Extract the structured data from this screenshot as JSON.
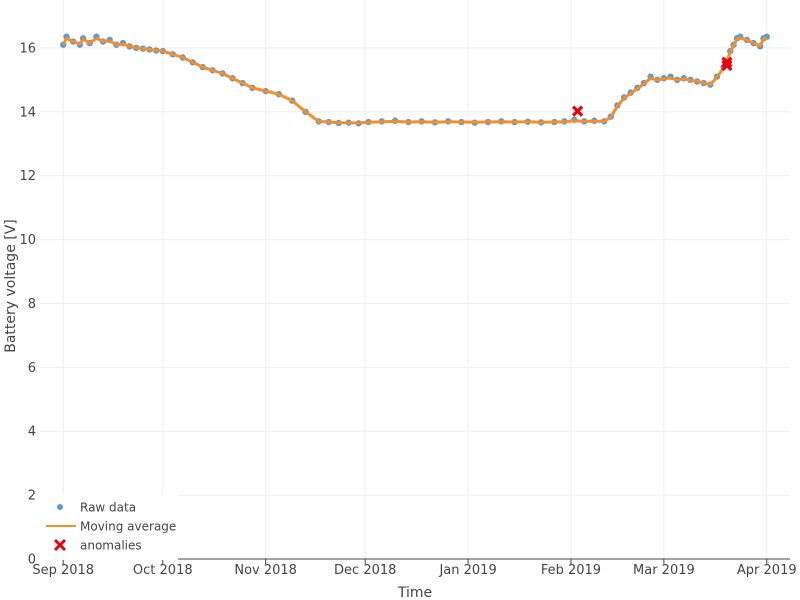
{
  "chart_data": {
    "type": "line",
    "title": "",
    "xlabel": "Time",
    "ylabel": "Battery voltage [V]",
    "ylim": [
      0,
      17.5
    ],
    "xlim": [
      "2018-08-25",
      "2019-04-08"
    ],
    "y_ticks": [
      0,
      2,
      4,
      6,
      8,
      10,
      12,
      14,
      16
    ],
    "x_ticks": [
      {
        "date": "2018-09-01",
        "label": "Sep 2018"
      },
      {
        "date": "2018-10-01",
        "label": "Oct 2018"
      },
      {
        "date": "2018-11-01",
        "label": "Nov 2018"
      },
      {
        "date": "2018-12-01",
        "label": "Dec 2018"
      },
      {
        "date": "2019-01-01",
        "label": "Jan 2019"
      },
      {
        "date": "2019-02-01",
        "label": "Feb 2019"
      },
      {
        "date": "2019-03-01",
        "label": "Mar 2019"
      },
      {
        "date": "2019-04-01",
        "label": "Apr 2019"
      }
    ],
    "grid": true,
    "legend_position": "bottom-left",
    "series": [
      {
        "name": "Raw data",
        "kind": "markers",
        "color": "#5b9bd5",
        "x": [
          "2018-09-01",
          "2018-09-02",
          "2018-09-04",
          "2018-09-06",
          "2018-09-07",
          "2018-09-09",
          "2018-09-11",
          "2018-09-13",
          "2018-09-15",
          "2018-09-17",
          "2018-09-19",
          "2018-09-21",
          "2018-09-23",
          "2018-09-25",
          "2018-09-27",
          "2018-09-29",
          "2018-10-01",
          "2018-10-04",
          "2018-10-07",
          "2018-10-10",
          "2018-10-13",
          "2018-10-16",
          "2018-10-19",
          "2018-10-22",
          "2018-10-25",
          "2018-10-28",
          "2018-11-01",
          "2018-11-05",
          "2018-11-09",
          "2018-11-13",
          "2018-11-17",
          "2018-11-20",
          "2018-11-23",
          "2018-11-26",
          "2018-11-29",
          "2018-12-02",
          "2018-12-06",
          "2018-12-10",
          "2018-12-14",
          "2018-12-18",
          "2018-12-22",
          "2018-12-26",
          "2018-12-30",
          "2019-01-03",
          "2019-01-07",
          "2019-01-11",
          "2019-01-15",
          "2019-01-19",
          "2019-01-23",
          "2019-01-27",
          "2019-01-30",
          "2019-02-02",
          "2019-02-05",
          "2019-02-08",
          "2019-02-11",
          "2019-02-13",
          "2019-02-15",
          "2019-02-17",
          "2019-02-19",
          "2019-02-21",
          "2019-02-23",
          "2019-02-25",
          "2019-02-27",
          "2019-03-01",
          "2019-03-03",
          "2019-03-05",
          "2019-03-07",
          "2019-03-09",
          "2019-03-11",
          "2019-03-13",
          "2019-03-15",
          "2019-03-17",
          "2019-03-19",
          "2019-03-20",
          "2019-03-21",
          "2019-03-22",
          "2019-03-23",
          "2019-03-24",
          "2019-03-26",
          "2019-03-28",
          "2019-03-30",
          "2019-03-31",
          "2019-04-01"
        ],
        "y": [
          16.1,
          16.35,
          16.2,
          16.1,
          16.3,
          16.15,
          16.35,
          16.2,
          16.25,
          16.1,
          16.15,
          16.05,
          16.0,
          15.98,
          15.95,
          15.92,
          15.9,
          15.8,
          15.7,
          15.55,
          15.4,
          15.3,
          15.2,
          15.05,
          14.9,
          14.75,
          14.65,
          14.55,
          14.35,
          14.0,
          13.7,
          13.68,
          13.65,
          13.66,
          13.64,
          13.68,
          13.7,
          13.72,
          13.68,
          13.7,
          13.67,
          13.7,
          13.68,
          13.66,
          13.68,
          13.7,
          13.68,
          13.69,
          13.67,
          13.68,
          13.7,
          13.75,
          13.7,
          13.72,
          13.7,
          13.85,
          14.2,
          14.45,
          14.6,
          14.75,
          14.9,
          15.1,
          15.0,
          15.05,
          15.1,
          15.0,
          15.05,
          15.0,
          14.95,
          14.9,
          14.85,
          15.1,
          15.4,
          15.6,
          15.9,
          16.1,
          16.3,
          16.35,
          16.25,
          16.15,
          16.05,
          16.3,
          16.35
        ]
      },
      {
        "name": "Moving average",
        "kind": "line",
        "color": "#f28e2b",
        "x": [
          "2018-09-01",
          "2018-09-02",
          "2018-09-04",
          "2018-09-06",
          "2018-09-07",
          "2018-09-09",
          "2018-09-11",
          "2018-09-13",
          "2018-09-15",
          "2018-09-17",
          "2018-09-19",
          "2018-09-21",
          "2018-09-23",
          "2018-09-25",
          "2018-09-27",
          "2018-09-29",
          "2018-10-01",
          "2018-10-04",
          "2018-10-07",
          "2018-10-10",
          "2018-10-13",
          "2018-10-16",
          "2018-10-19",
          "2018-10-22",
          "2018-10-25",
          "2018-10-28",
          "2018-11-01",
          "2018-11-05",
          "2018-11-09",
          "2018-11-13",
          "2018-11-17",
          "2018-11-20",
          "2018-11-23",
          "2018-11-26",
          "2018-11-29",
          "2018-12-02",
          "2018-12-06",
          "2018-12-10",
          "2018-12-14",
          "2018-12-18",
          "2018-12-22",
          "2018-12-26",
          "2018-12-30",
          "2019-01-03",
          "2019-01-07",
          "2019-01-11",
          "2019-01-15",
          "2019-01-19",
          "2019-01-23",
          "2019-01-27",
          "2019-01-30",
          "2019-02-02",
          "2019-02-05",
          "2019-02-08",
          "2019-02-11",
          "2019-02-13",
          "2019-02-15",
          "2019-02-17",
          "2019-02-19",
          "2019-02-21",
          "2019-02-23",
          "2019-02-25",
          "2019-02-27",
          "2019-03-01",
          "2019-03-03",
          "2019-03-05",
          "2019-03-07",
          "2019-03-09",
          "2019-03-11",
          "2019-03-13",
          "2019-03-15",
          "2019-03-17",
          "2019-03-19",
          "2019-03-20",
          "2019-03-21",
          "2019-03-22",
          "2019-03-23",
          "2019-03-24",
          "2019-03-26",
          "2019-03-28",
          "2019-03-30",
          "2019-03-31",
          "2019-04-01"
        ],
        "y": [
          16.1,
          16.3,
          16.2,
          16.12,
          16.28,
          16.15,
          16.3,
          16.2,
          16.22,
          16.1,
          16.12,
          16.05,
          16.0,
          15.98,
          15.95,
          15.92,
          15.9,
          15.8,
          15.7,
          15.55,
          15.4,
          15.3,
          15.2,
          15.05,
          14.9,
          14.75,
          14.65,
          14.55,
          14.35,
          14.0,
          13.7,
          13.68,
          13.66,
          13.66,
          13.65,
          13.67,
          13.69,
          13.7,
          13.68,
          13.69,
          13.67,
          13.69,
          13.68,
          13.67,
          13.68,
          13.69,
          13.68,
          13.69,
          13.67,
          13.68,
          13.69,
          13.72,
          13.7,
          13.71,
          13.7,
          13.83,
          14.18,
          14.43,
          14.58,
          14.73,
          14.88,
          15.05,
          15.0,
          15.03,
          15.06,
          15.0,
          15.03,
          14.99,
          14.95,
          14.9,
          14.86,
          15.08,
          15.38,
          15.58,
          15.88,
          16.08,
          16.28,
          16.32,
          16.24,
          16.15,
          16.06,
          16.28,
          16.32
        ]
      },
      {
        "name": "anomalies",
        "kind": "x-markers",
        "color": "#e8000b",
        "x": [
          "2019-02-03",
          "2019-03-20",
          "2019-03-20"
        ],
        "y": [
          14.02,
          15.55,
          15.45
        ]
      }
    ]
  }
}
